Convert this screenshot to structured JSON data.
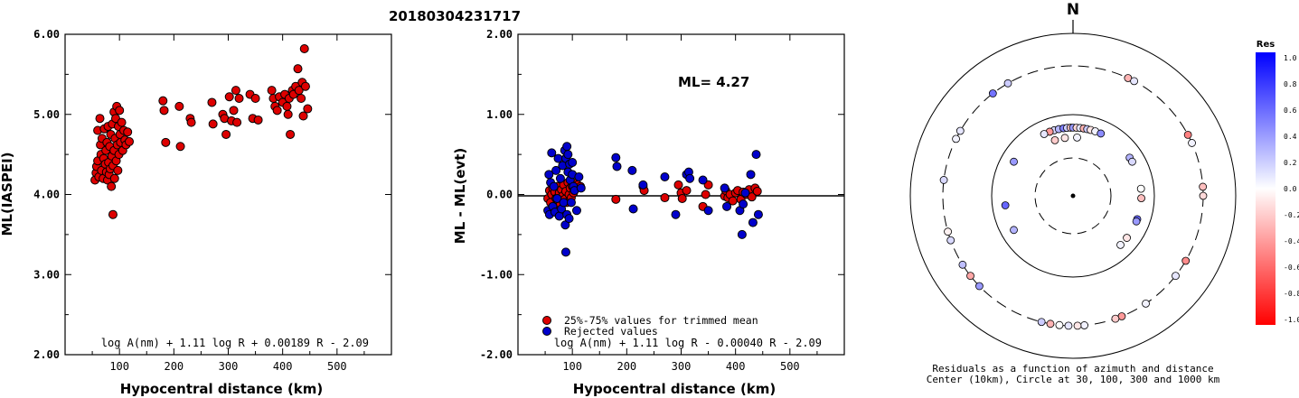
{
  "title": "20180304231717",
  "chart_data": [
    {
      "type": "scatter",
      "ylabel": "ML(IASPEI)",
      "xlabel": "Hypocentral distance (km)",
      "xlim": [
        0,
        600
      ],
      "ylim": [
        2.0,
        6.0
      ],
      "x_ticks": [
        "100",
        "200",
        "300",
        "400",
        "500"
      ],
      "y_ticks": [
        "2.00",
        "3.00",
        "4.00",
        "5.00",
        "6.00"
      ],
      "formula": "log A(nm) + 1.11 log R + 0.00189 R - 2.09",
      "marker_color": "#dd0000",
      "points": [
        [
          55,
          4.18
        ],
        [
          57,
          4.27
        ],
        [
          58,
          4.35
        ],
        [
          60,
          4.42
        ],
        [
          60,
          4.8
        ],
        [
          62,
          4.22
        ],
        [
          64,
          4.95
        ],
        [
          65,
          4.62
        ],
        [
          66,
          4.5
        ],
        [
          67,
          4.3
        ],
        [
          68,
          4.7
        ],
        [
          70,
          4.2
        ],
        [
          71,
          4.45
        ],
        [
          72,
          4.82
        ],
        [
          74,
          4.38
        ],
        [
          75,
          4.55
        ],
        [
          76,
          4.28
        ],
        [
          77,
          4.65
        ],
        [
          78,
          4.18
        ],
        [
          79,
          4.85
        ],
        [
          80,
          4.4
        ],
        [
          81,
          4.25
        ],
        [
          82,
          4.6
        ],
        [
          83,
          4.32
        ],
        [
          84,
          4.75
        ],
        [
          85,
          4.1
        ],
        [
          86,
          4.48
        ],
        [
          87,
          4.88
        ],
        [
          88,
          4.36
        ],
        [
          88,
          3.75
        ],
        [
          90,
          5.03
        ],
        [
          90,
          4.55
        ],
        [
          91,
          4.2
        ],
        [
          92,
          4.7
        ],
        [
          93,
          4.95
        ],
        [
          94,
          4.42
        ],
        [
          95,
          5.1
        ],
        [
          96,
          4.62
        ],
        [
          97,
          4.3
        ],
        [
          98,
          4.85
        ],
        [
          99,
          4.5
        ],
        [
          100,
          5.05
        ],
        [
          101,
          4.75
        ],
        [
          102,
          4.65
        ],
        [
          104,
          4.9
        ],
        [
          106,
          4.55
        ],
        [
          108,
          4.8
        ],
        [
          110,
          4.68
        ],
        [
          112,
          4.62
        ],
        [
          115,
          4.78
        ],
        [
          118,
          4.66
        ],
        [
          180,
          5.17
        ],
        [
          182,
          5.05
        ],
        [
          185,
          4.65
        ],
        [
          210,
          5.1
        ],
        [
          212,
          4.6
        ],
        [
          230,
          4.95
        ],
        [
          232,
          4.9
        ],
        [
          270,
          5.15
        ],
        [
          272,
          4.88
        ],
        [
          290,
          5.0
        ],
        [
          293,
          4.95
        ],
        [
          296,
          4.75
        ],
        [
          302,
          5.22
        ],
        [
          306,
          4.92
        ],
        [
          310,
          5.05
        ],
        [
          314,
          5.3
        ],
        [
          316,
          4.9
        ],
        [
          320,
          5.2
        ],
        [
          340,
          5.25
        ],
        [
          345,
          4.95
        ],
        [
          350,
          5.2
        ],
        [
          355,
          4.93
        ],
        [
          380,
          5.3
        ],
        [
          383,
          5.2
        ],
        [
          386,
          5.1
        ],
        [
          390,
          5.05
        ],
        [
          394,
          5.22
        ],
        [
          400,
          5.15
        ],
        [
          404,
          5.25
        ],
        [
          408,
          5.1
        ],
        [
          410,
          5.0
        ],
        [
          412,
          5.2
        ],
        [
          414,
          4.75
        ],
        [
          418,
          5.3
        ],
        [
          420,
          5.25
        ],
        [
          424,
          5.35
        ],
        [
          428,
          5.57
        ],
        [
          430,
          5.3
        ],
        [
          434,
          5.2
        ],
        [
          436,
          5.4
        ],
        [
          438,
          4.98
        ],
        [
          440,
          5.82
        ],
        [
          442,
          5.35
        ],
        [
          446,
          5.07
        ]
      ]
    },
    {
      "type": "scatter",
      "ylabel": "ML - ML(evt)",
      "xlabel": "Hypocentral distance (km)",
      "xlim": [
        0,
        600
      ],
      "ylim": [
        -2.0,
        2.0
      ],
      "x_ticks": [
        "100",
        "200",
        "300",
        "400",
        "500"
      ],
      "y_ticks": [
        "-2.00",
        "-1.00",
        "0.00",
        "1.00",
        "2.00"
      ],
      "annotation": "ML= 4.27",
      "formula": "log A(nm) + 1.11 log R - 0.00040 R - 2.09",
      "legend": [
        {
          "label": "25%-75% values for trimmed mean",
          "color": "#dd0000"
        },
        {
          "label": "Rejected values",
          "color": "#0000cc"
        }
      ],
      "series": [
        {
          "color": "#dd0000",
          "points": [
            [
              55,
              -0.05
            ],
            [
              58,
              0.05
            ],
            [
              60,
              -0.1
            ],
            [
              62,
              0.0
            ],
            [
              64,
              0.08
            ],
            [
              66,
              -0.15
            ],
            [
              68,
              0.03
            ],
            [
              70,
              -0.05
            ],
            [
              72,
              0.1
            ],
            [
              74,
              -0.08
            ],
            [
              76,
              0.02
            ],
            [
              78,
              -0.12
            ],
            [
              80,
              0.06
            ],
            [
              82,
              -0.02
            ],
            [
              84,
              0.12
            ],
            [
              86,
              -0.06
            ],
            [
              88,
              0.04
            ],
            [
              90,
              -0.1
            ],
            [
              92,
              0.15
            ],
            [
              94,
              0.0
            ],
            [
              96,
              0.08
            ],
            [
              98,
              -0.04
            ],
            [
              100,
              0.1
            ],
            [
              102,
              0.02
            ],
            [
              106,
              0.14
            ],
            [
              110,
              0.12
            ],
            [
              115,
              0.1
            ],
            [
              180,
              -0.06
            ],
            [
              230,
              0.1
            ],
            [
              232,
              0.05
            ],
            [
              270,
              -0.04
            ],
            [
              295,
              0.12
            ],
            [
              300,
              0.02
            ],
            [
              302,
              -0.05
            ],
            [
              310,
              0.05
            ],
            [
              340,
              -0.15
            ],
            [
              345,
              0.0
            ],
            [
              350,
              0.12
            ],
            [
              380,
              -0.02
            ],
            [
              382,
              0.05
            ],
            [
              386,
              -0.04
            ],
            [
              390,
              0.0
            ],
            [
              395,
              -0.08
            ],
            [
              400,
              0.02
            ],
            [
              404,
              0.05
            ],
            [
              410,
              -0.06
            ],
            [
              414,
              0.03
            ],
            [
              420,
              0.0
            ],
            [
              425,
              0.06
            ],
            [
              430,
              -0.03
            ],
            [
              436,
              0.08
            ],
            [
              440,
              0.04
            ]
          ]
        },
        {
          "color": "#0000cc",
          "points": [
            [
              55,
              -0.2
            ],
            [
              57,
              0.25
            ],
            [
              58,
              -0.25
            ],
            [
              60,
              0.15
            ],
            [
              62,
              0.52
            ],
            [
              64,
              -0.15
            ],
            [
              66,
              0.1
            ],
            [
              68,
              -0.22
            ],
            [
              70,
              0.3
            ],
            [
              72,
              -0.05
            ],
            [
              74,
              0.45
            ],
            [
              76,
              -0.27
            ],
            [
              78,
              0.2
            ],
            [
              80,
              -0.18
            ],
            [
              82,
              0.36
            ],
            [
              84,
              -0.1
            ],
            [
              86,
              0.55
            ],
            [
              87,
              -0.38
            ],
            [
              88,
              0.45
            ],
            [
              88,
              -0.72
            ],
            [
              90,
              0.6
            ],
            [
              90,
              -0.25
            ],
            [
              92,
              0.28
            ],
            [
              92,
              0.5
            ],
            [
              94,
              -0.3
            ],
            [
              95,
              0.38
            ],
            [
              96,
              0.18
            ],
            [
              98,
              -0.1
            ],
            [
              100,
              0.25
            ],
            [
              100,
              0.4
            ],
            [
              102,
              0.1
            ],
            [
              104,
              0.05
            ],
            [
              108,
              -0.2
            ],
            [
              112,
              0.22
            ],
            [
              116,
              0.08
            ],
            [
              180,
              0.46
            ],
            [
              182,
              0.35
            ],
            [
              210,
              0.3
            ],
            [
              212,
              -0.18
            ],
            [
              230,
              0.12
            ],
            [
              270,
              0.22
            ],
            [
              290,
              -0.25
            ],
            [
              310,
              0.25
            ],
            [
              314,
              0.28
            ],
            [
              316,
              0.2
            ],
            [
              340,
              0.18
            ],
            [
              350,
              -0.2
            ],
            [
              380,
              0.08
            ],
            [
              384,
              -0.15
            ],
            [
              408,
              -0.2
            ],
            [
              412,
              -0.5
            ],
            [
              414,
              -0.12
            ],
            [
              418,
              0.02
            ],
            [
              428,
              0.25
            ],
            [
              432,
              -0.35
            ],
            [
              438,
              0.5
            ],
            [
              442,
              -0.25
            ]
          ]
        }
      ]
    },
    {
      "type": "scatter",
      "title": "N",
      "caption_line1": "Residuals as a function of azimuth and distance",
      "caption_line2": "Center (10km), Circle at 30, 100, 300 and 1000 km",
      "colorbar_title": "Res",
      "colorbar_ticks": [
        "1.0",
        "0.8",
        "0.6",
        "0.4",
        "0.2",
        "0.0",
        "-0.2",
        "-0.4",
        "-0.6",
        "-0.8",
        "-1.0"
      ],
      "points_az_r_res": [
        [
          -38,
          0.8,
          0.55
        ],
        [
          -30,
          0.8,
          0.2
        ],
        [
          25,
          0.8,
          -0.3
        ],
        [
          28,
          0.8,
          0.1
        ],
        [
          62,
          0.8,
          -0.5
        ],
        [
          66,
          0.8,
          0.05
        ],
        [
          86,
          0.8,
          -0.25
        ],
        [
          90,
          0.8,
          -0.15
        ],
        [
          120,
          0.8,
          -0.45
        ],
        [
          128,
          0.8,
          0.1
        ],
        [
          146,
          0.8,
          0.05
        ],
        [
          158,
          0.8,
          -0.4
        ],
        [
          161,
          0.8,
          -0.2
        ],
        [
          175,
          0.8,
          0.05
        ],
        [
          178,
          0.8,
          -0.1
        ],
        [
          182,
          0.8,
          0.1
        ],
        [
          186,
          0.8,
          0.0
        ],
        [
          190,
          0.8,
          -0.3
        ],
        [
          194,
          0.8,
          0.2
        ],
        [
          226,
          0.8,
          0.4
        ],
        [
          232,
          0.8,
          -0.35
        ],
        [
          238,
          0.8,
          0.25
        ],
        [
          250,
          0.8,
          0.15
        ],
        [
          254,
          0.8,
          -0.05
        ],
        [
          277,
          0.8,
          0.15
        ],
        [
          296,
          0.8,
          0.05
        ],
        [
          300,
          0.8,
          0.1
        ],
        [
          -16,
          0.42,
          0.15
        ],
        [
          -12,
          0.42,
          0.3
        ],
        [
          -8,
          0.42,
          0.5
        ],
        [
          -5,
          0.42,
          0.2
        ],
        [
          -2,
          0.42,
          -0.2
        ],
        [
          0,
          0.42,
          0.4
        ],
        [
          3,
          0.42,
          -0.15
        ],
        [
          6,
          0.42,
          0.1
        ],
        [
          9,
          0.42,
          -0.3
        ],
        [
          12,
          0.42,
          0.2
        ],
        [
          15,
          0.42,
          -0.1
        ],
        [
          19,
          0.42,
          0.05
        ],
        [
          24,
          0.42,
          0.45
        ],
        [
          -20,
          0.42,
          -0.4
        ],
        [
          -25,
          0.42,
          0.1
        ],
        [
          -18,
          0.36,
          -0.2
        ],
        [
          -8,
          0.36,
          -0.1
        ],
        [
          4,
          0.36,
          0.05
        ],
        [
          56,
          0.42,
          0.3
        ],
        [
          60,
          0.42,
          0.15
        ],
        [
          84,
          0.42,
          0.0
        ],
        [
          92,
          0.42,
          -0.25
        ],
        [
          110,
          0.42,
          0.6
        ],
        [
          112,
          0.42,
          0.4
        ],
        [
          128,
          0.42,
          -0.1
        ],
        [
          136,
          0.42,
          0.05
        ],
        [
          240,
          0.42,
          0.3
        ],
        [
          262,
          0.42,
          0.6
        ],
        [
          300,
          0.42,
          0.4
        ]
      ]
    }
  ]
}
